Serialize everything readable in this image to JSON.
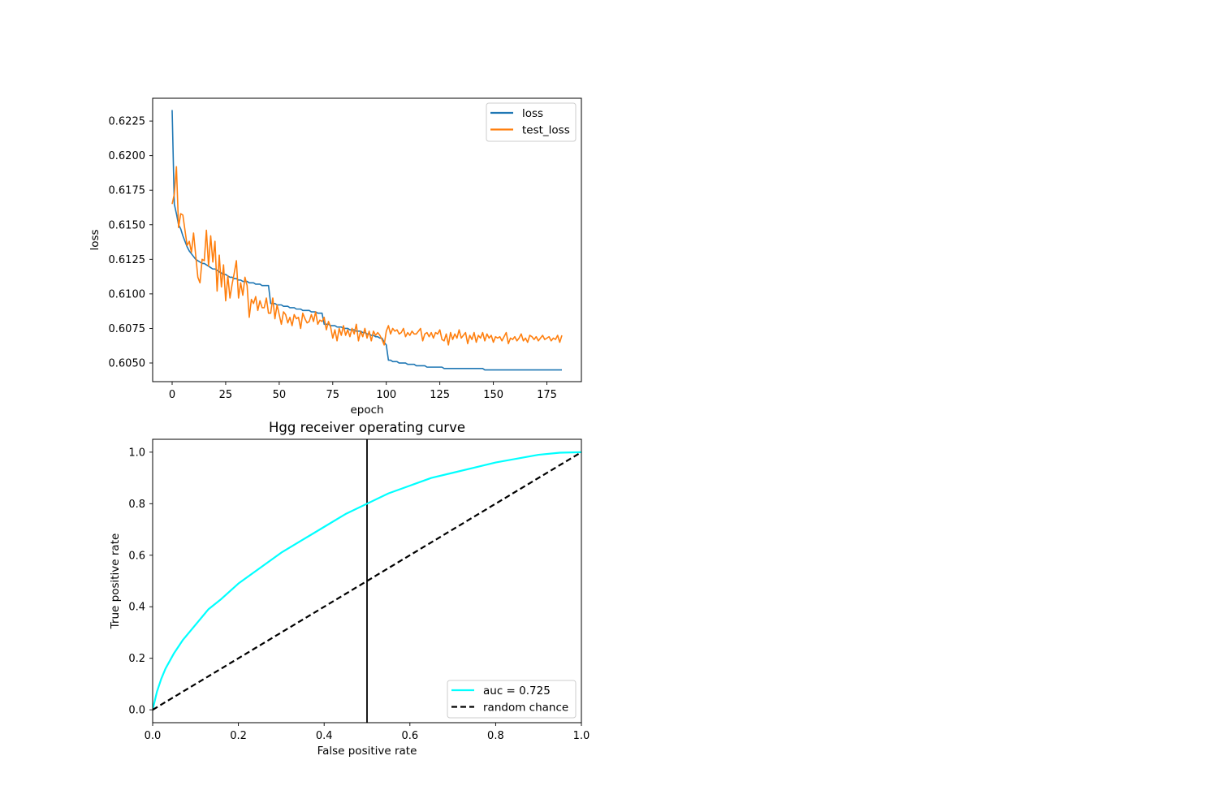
{
  "figure": {
    "background": "#ffffff"
  },
  "chart_data": [
    {
      "type": "line",
      "title": "",
      "xlabel": "epoch",
      "ylabel": "loss",
      "xlim": [
        -9.1,
        191.1
      ],
      "ylim": [
        0.60365,
        0.62415
      ],
      "xticks": [
        0,
        25,
        50,
        75,
        100,
        125,
        150,
        175
      ],
      "xtick_labels": [
        "0",
        "25",
        "50",
        "75",
        "100",
        "125",
        "150",
        "175"
      ],
      "yticks": [
        0.605,
        0.6075,
        0.61,
        0.6125,
        0.615,
        0.6175,
        0.62,
        0.6225
      ],
      "ytick_labels": [
        "0.6050",
        "0.6075",
        "0.6100",
        "0.6125",
        "0.6150",
        "0.6175",
        "0.6200",
        "0.6225"
      ],
      "grid": false,
      "legend": "upper right",
      "series": [
        {
          "name": "loss",
          "color": "#1f77b4",
          "x": [
            0,
            1,
            2,
            3,
            4,
            5,
            6,
            7,
            8,
            9,
            10,
            11,
            12,
            13,
            14,
            15,
            16,
            17,
            18,
            19,
            20,
            21,
            22,
            23,
            24,
            25,
            26,
            27,
            28,
            29,
            30,
            31,
            32,
            33,
            34,
            35,
            36,
            37,
            38,
            39,
            40,
            41,
            42,
            43,
            44,
            45,
            46,
            47,
            48,
            49,
            50,
            51,
            52,
            53,
            54,
            55,
            56,
            57,
            58,
            59,
            60,
            61,
            62,
            63,
            64,
            65,
            66,
            67,
            68,
            69,
            70,
            71,
            72,
            73,
            74,
            75,
            76,
            77,
            78,
            79,
            80,
            81,
            82,
            83,
            84,
            85,
            86,
            87,
            88,
            89,
            90,
            91,
            92,
            93,
            94,
            95,
            96,
            97,
            98,
            99,
            100,
            101,
            102,
            103,
            104,
            105,
            106,
            107,
            108,
            109,
            110,
            111,
            112,
            113,
            114,
            115,
            116,
            117,
            118,
            119,
            120,
            121,
            122,
            123,
            124,
            125,
            126,
            127,
            128,
            129,
            130,
            131,
            132,
            133,
            134,
            135,
            136,
            137,
            138,
            139,
            140,
            141,
            142,
            143,
            144,
            145,
            146,
            147,
            148,
            149,
            150,
            151,
            152,
            153,
            154,
            155,
            156,
            157,
            158,
            159,
            160,
            161,
            162,
            163,
            164,
            165,
            166,
            167,
            168,
            169,
            170,
            171,
            172,
            173,
            174,
            175,
            176,
            177,
            178,
            179,
            180,
            181,
            182
          ],
          "y": [
            0.6233,
            0.6165,
            0.6158,
            0.615,
            0.6147,
            0.6142,
            0.6138,
            0.6134,
            0.6131,
            0.6129,
            0.6127,
            0.6125,
            0.6124,
            0.6123,
            0.6122,
            0.6122,
            0.6121,
            0.612,
            0.6119,
            0.6118,
            0.6118,
            0.6117,
            0.6116,
            0.6115,
            0.6114,
            0.6114,
            0.6113,
            0.6112,
            0.6112,
            0.6111,
            0.6111,
            0.611,
            0.611,
            0.6109,
            0.6109,
            0.6109,
            0.6108,
            0.6108,
            0.6108,
            0.6107,
            0.6107,
            0.6107,
            0.6106,
            0.6106,
            0.6106,
            0.6106,
            0.6093,
            0.6093,
            0.6093,
            0.6092,
            0.6092,
            0.6092,
            0.6091,
            0.6091,
            0.6091,
            0.609,
            0.609,
            0.609,
            0.6089,
            0.6089,
            0.6089,
            0.6088,
            0.6088,
            0.6088,
            0.6088,
            0.6087,
            0.6087,
            0.6087,
            0.6086,
            0.6086,
            0.6086,
            0.6078,
            0.6078,
            0.6078,
            0.6077,
            0.6077,
            0.6077,
            0.6076,
            0.6076,
            0.6076,
            0.6075,
            0.6075,
            0.6075,
            0.6074,
            0.6074,
            0.6074,
            0.6073,
            0.6073,
            0.6073,
            0.6072,
            0.6072,
            0.6071,
            0.6071,
            0.607,
            0.607,
            0.6069,
            0.6069,
            0.6068,
            0.6068,
            0.6065,
            0.6063,
            0.6052,
            0.6052,
            0.6051,
            0.6051,
            0.6051,
            0.605,
            0.605,
            0.605,
            0.605,
            0.6049,
            0.6049,
            0.6049,
            0.6049,
            0.6048,
            0.6048,
            0.6048,
            0.6048,
            0.6048,
            0.6047,
            0.6047,
            0.6047,
            0.6047,
            0.6047,
            0.6047,
            0.6047,
            0.6047,
            0.6046,
            0.6046,
            0.6046,
            0.6046,
            0.6046,
            0.6046,
            0.6046,
            0.6046,
            0.6046,
            0.6046,
            0.6046,
            0.6046,
            0.6046,
            0.6046,
            0.6046,
            0.6046,
            0.6046,
            0.6046,
            0.6046,
            0.6045,
            0.6045,
            0.6045,
            0.6045,
            0.6045,
            0.6045,
            0.6045,
            0.6045,
            0.6045,
            0.6045,
            0.6045,
            0.6045,
            0.6045,
            0.6045,
            0.6045,
            0.6045,
            0.6045,
            0.6045,
            0.6045,
            0.6045,
            0.6045,
            0.6045,
            0.6045,
            0.6045,
            0.6045,
            0.6045,
            0.6045,
            0.6045,
            0.6045,
            0.6045,
            0.6045,
            0.6045,
            0.6045,
            0.6045,
            0.6045,
            0.6045,
            0.6045
          ]
        },
        {
          "name": "test_loss",
          "color": "#ff7f0e",
          "x": [
            0,
            1,
            2,
            3,
            4,
            5,
            6,
            7,
            8,
            9,
            10,
            11,
            12,
            13,
            14,
            15,
            16,
            17,
            18,
            19,
            20,
            21,
            22,
            23,
            24,
            25,
            26,
            27,
            28,
            29,
            30,
            31,
            32,
            33,
            34,
            35,
            36,
            37,
            38,
            39,
            40,
            41,
            42,
            43,
            44,
            45,
            46,
            47,
            48,
            49,
            50,
            51,
            52,
            53,
            54,
            55,
            56,
            57,
            58,
            59,
            60,
            61,
            62,
            63,
            64,
            65,
            66,
            67,
            68,
            69,
            70,
            71,
            72,
            73,
            74,
            75,
            76,
            77,
            78,
            79,
            80,
            81,
            82,
            83,
            84,
            85,
            86,
            87,
            88,
            89,
            90,
            91,
            92,
            93,
            94,
            95,
            96,
            97,
            98,
            99,
            100,
            101,
            102,
            103,
            104,
            105,
            106,
            107,
            108,
            109,
            110,
            111,
            112,
            113,
            114,
            115,
            116,
            117,
            118,
            119,
            120,
            121,
            122,
            123,
            124,
            125,
            126,
            127,
            128,
            129,
            130,
            131,
            132,
            133,
            134,
            135,
            136,
            137,
            138,
            139,
            140,
            141,
            142,
            143,
            144,
            145,
            146,
            147,
            148,
            149,
            150,
            151,
            152,
            153,
            154,
            155,
            156,
            157,
            158,
            159,
            160,
            161,
            162,
            163,
            164,
            165,
            166,
            167,
            168,
            169,
            170,
            171,
            172,
            173,
            174,
            175,
            176,
            177,
            178,
            179,
            180,
            181,
            182
          ],
          "y": [
            0.6165,
            0.6172,
            0.6192,
            0.6148,
            0.6158,
            0.6157,
            0.6146,
            0.6135,
            0.6138,
            0.613,
            0.6144,
            0.6128,
            0.6112,
            0.6108,
            0.6125,
            0.6124,
            0.6146,
            0.612,
            0.6142,
            0.6123,
            0.6138,
            0.6102,
            0.6128,
            0.6105,
            0.6121,
            0.6095,
            0.6113,
            0.6097,
            0.6107,
            0.6115,
            0.6124,
            0.6097,
            0.6108,
            0.6099,
            0.6112,
            0.6106,
            0.6083,
            0.6096,
            0.6093,
            0.6098,
            0.6088,
            0.6095,
            0.609,
            0.609,
            0.6097,
            0.6086,
            0.6086,
            0.6097,
            0.6082,
            0.6092,
            0.6085,
            0.6078,
            0.6087,
            0.6085,
            0.6079,
            0.6083,
            0.6077,
            0.6085,
            0.6082,
            0.6083,
            0.6075,
            0.6086,
            0.6082,
            0.6079,
            0.608,
            0.6085,
            0.608,
            0.6087,
            0.6078,
            0.6081,
            0.608,
            0.6083,
            0.6074,
            0.608,
            0.6076,
            0.6068,
            0.6074,
            0.6066,
            0.6075,
            0.607,
            0.6077,
            0.607,
            0.6074,
            0.6069,
            0.6075,
            0.6071,
            0.6078,
            0.6066,
            0.6073,
            0.6069,
            0.6075,
            0.6068,
            0.6073,
            0.6066,
            0.6073,
            0.607,
            0.6072,
            0.607,
            0.6067,
            0.6063,
            0.6073,
            0.6077,
            0.6071,
            0.6075,
            0.6073,
            0.6074,
            0.6071,
            0.6072,
            0.6075,
            0.6069,
            0.6072,
            0.607,
            0.6073,
            0.6071,
            0.6071,
            0.6073,
            0.6075,
            0.6066,
            0.6071,
            0.6072,
            0.6069,
            0.6072,
            0.6068,
            0.6072,
            0.6071,
            0.6074,
            0.6067,
            0.6066,
            0.6071,
            0.6063,
            0.6072,
            0.6067,
            0.6071,
            0.6068,
            0.6074,
            0.6068,
            0.607,
            0.6072,
            0.6064,
            0.607,
            0.6067,
            0.6072,
            0.6065,
            0.607,
            0.6068,
            0.6072,
            0.6066,
            0.6071,
            0.6068,
            0.607,
            0.6065,
            0.6069,
            0.6068,
            0.6069,
            0.6066,
            0.6069,
            0.6072,
            0.6064,
            0.6068,
            0.6067,
            0.6069,
            0.6066,
            0.6068,
            0.6071,
            0.6066,
            0.6068,
            0.6065,
            0.607,
            0.6069,
            0.6067,
            0.6069,
            0.6066,
            0.6068,
            0.607,
            0.6067,
            0.6068,
            0.6069,
            0.6066,
            0.6068,
            0.6067,
            0.607,
            0.6065,
            0.607
          ]
        }
      ]
    },
    {
      "type": "line",
      "title": "Hgg receiver operating curve",
      "xlabel": "False positive rate",
      "ylabel": "True positive rate",
      "xlim": [
        0.0,
        1.0
      ],
      "ylim": [
        -0.05,
        1.05
      ],
      "xticks": [
        0.0,
        0.2,
        0.4,
        0.6,
        0.8,
        1.0
      ],
      "xtick_labels": [
        "0.0",
        "0.2",
        "0.4",
        "0.6",
        "0.8",
        "1.0"
      ],
      "yticks": [
        0.0,
        0.2,
        0.4,
        0.6,
        0.8,
        1.0
      ],
      "ytick_labels": [
        "0.0",
        "0.2",
        "0.4",
        "0.6",
        "0.8",
        "1.0"
      ],
      "grid": false,
      "legend": "lower right",
      "vline": {
        "x": 0.5,
        "color": "#000000"
      },
      "series": [
        {
          "name": "auc = 0.725",
          "color": "#00ffff",
          "style": "solid",
          "x": [
            0.0,
            0.01,
            0.02,
            0.03,
            0.05,
            0.07,
            0.1,
            0.13,
            0.16,
            0.2,
            0.25,
            0.3,
            0.35,
            0.4,
            0.45,
            0.5,
            0.55,
            0.6,
            0.65,
            0.7,
            0.75,
            0.8,
            0.85,
            0.9,
            0.95,
            1.0
          ],
          "y": [
            0.0,
            0.07,
            0.12,
            0.16,
            0.22,
            0.27,
            0.33,
            0.39,
            0.43,
            0.49,
            0.55,
            0.61,
            0.66,
            0.71,
            0.76,
            0.8,
            0.84,
            0.87,
            0.9,
            0.92,
            0.94,
            0.96,
            0.975,
            0.99,
            0.998,
            1.0
          ]
        },
        {
          "name": "random chance",
          "color": "#000000",
          "style": "dashed",
          "x": [
            0.0,
            1.0
          ],
          "y": [
            0.0,
            1.0
          ]
        }
      ]
    }
  ]
}
